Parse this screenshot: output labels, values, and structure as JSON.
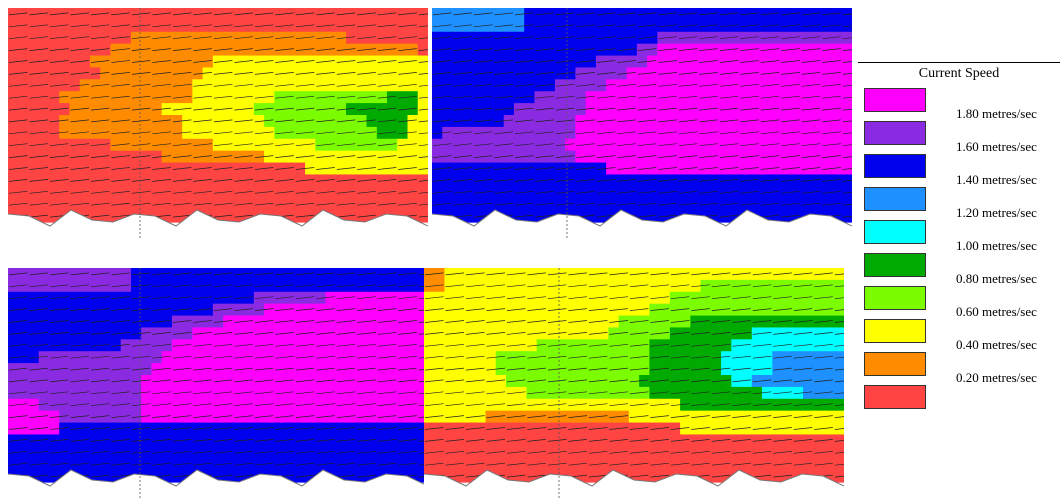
{
  "legend": {
    "title": "Current Speed",
    "items": [
      {
        "label": "1.80 metres/sec",
        "color": "#ff00ff"
      },
      {
        "label": "1.60 metres/sec",
        "color": "#8a2be2"
      },
      {
        "label": "1.40 metres/sec",
        "color": "#0000ee"
      },
      {
        "label": "1.20 metres/sec",
        "color": "#1e90ff"
      },
      {
        "label": "1.00 metres/sec",
        "color": "#00ffff"
      },
      {
        "label": "0.80 metres/sec",
        "color": "#00aa00"
      },
      {
        "label": "0.60 metres/sec",
        "color": "#7cfc00"
      },
      {
        "label": "0.40 metres/sec",
        "color": "#ffff00"
      },
      {
        "label": "0.20 metres/sec",
        "color": "#ff8c00"
      },
      {
        "label": "",
        "color": "#ff4444"
      }
    ]
  },
  "panels": [
    {
      "name": "panel-top-left",
      "rows": [
        "RRRRRRRRRRRRRRRRRRRRRRRRRRRRRRRRRRRRRRRRR",
        "RRRRRRRRRRRRRRRRRRRRRRRRRRRRRRRRRRRRRRRRR",
        "RRRRRRRRRRRROOOOOOOOOOOOOOOOOOOOORRRRRRRR",
        "RRRRRRRRRROOOOOOOOOOOOOOOOOOOOOOOOOOOOOOR",
        "RRRRRRRROOOOOOOOOOOOYYYYYYYYYYYYYYYYYYYYY",
        "RRRRRRRRROOOOOOOOOOYYYYYYYYYYYYYYYYYYYYYY",
        "RRRRRRROOOOOOOOOOOYYYYYYYYYYYYYYYYYYYYYYY",
        "RRRRROOOOOOOOOOOOOYYYYYYYYLLLLLLLLLLLGGGY",
        "RRRRRROOOOOOOOOYYYYYYYYYLLLLLLLLLGGGGGGGY",
        "RRRRROOOOOOOOOOOOYYYYYYYYLLLLLLLLLLGGGGYY",
        "RRRRROOOOOOOOOOOOYYYYYYYYYLLLLLLLLLLGGGYY",
        "RRRRRRRRRROOOOOOOOOOYYYYYYYYYYLLLLLLLLYYY",
        "RRRRRRRRRRRRRRROOOOOOOOOOYYYYYYYYYYYYYYYY",
        "RRRRRRRRRRRRRRRRRRRRRRRRRRRRRYYYYYYYYYYYY",
        "RRRRRRRRRRRRRRRRRRRRRRRRRRRRRRRRRRRRRRRRR",
        "RRRRRRRRRRRRRRRRRRRRRRRRRRRRRRRRRRRRRRRRR",
        "RRRRRRRRRRRRRRRRRRRRRRRRRRRRRRRRRRRRRRRRR",
        "RRRRRRRRRRRRRRRRRRRRRRRRRRRRRRRRRRRRRRRRR"
      ]
    },
    {
      "name": "panel-top-right",
      "rows": [
        "DDDDSSSSSBBBBBBBBBBBBBBBBBBBBBBBBBBBBBBBB",
        "DDDDDDSSSBBBBBBBBBBBBBBBBBBBBBBBBBBBBBBBB",
        "BBBBBBBBBBBBBBBBBBBBBBPPPPPPPPPPPPPPPPPPP",
        "BBBBBBBBBBBBBBBBBBBBPPMMMMMMMMMMMMMMMMMMM",
        "BBBBBBBBBBBBBBBBPPPPPMMMMMMMMMMMMMMMMMMMM",
        "BBBBBBBBBBBBBBPPPPPMMMMMMMMMMMMMMMMMMMMMM",
        "BBBBBBBBBBBBPPPPPMMMMMMMMMMMMMMMMMMMMMMMM",
        "BBBBBBBBBBPPPPPMMMMMMMMMMMMMMMMMMMMMMMMMM",
        "BBBBBBBBPPPPPPPMMMMMMMMMMMMMMMMMMMMMMMMMM",
        "BBBBBBBPPPPPPPMMMMMMMMMMMMMMMMMMMMMMMMMMM",
        "BPPPPPPPPPPPPPMMMMMMMMMMMMMMMMMMMMMMMMMMM",
        "PPPPPPPPPPPPPMMMMMMMMMMMMMMMMMMMMMMMMMMMM",
        "PPPPPPPPPPPPPPMMMMMMMMMMMMMMMMMMMMMMMMMMM",
        "BBBBBBBBBBBBBBBBBMMMMMMMMMMMMMMMMMMMMMMMM",
        "BBBBBBBBBBBBBBBBBBBBBBBBBBBBBBBBBBBBBBBBB",
        "BBBBBBBBBBBBBBBBBBBBBBBBBBBBBBBBBBBBBBBBB",
        "BBBBBBBBBBBBBBBBBBBBBBBBBBBBBBBBBBBBBBBBB",
        "BBBBBBBBBBBBBBBBBBBBBBBBBBBBBBBBBBBBBBBBB"
      ]
    },
    {
      "name": "panel-bottom-left",
      "rows": [
        "PPPPPPPPPPPPBBBBBBBBBBBBBBBBBBBBBBBBBBBBB",
        "PPPPPPPPPPPPBBBBBBBBBBBBBBBBBBBBBBBBBBBBB",
        "BBBBBBBBBBBBBBBBBBBBBBBBPPPPPPPMMMMMMMMMM",
        "BBBBBBBBBBBBBBBBBBBBPPPPPMMMMMMMMMMMMMMMM",
        "BBBBBBBBBBBBBBBBPPPPPMMMMMMMMMMMMMMMMMMMM",
        "BBBBBBBBBBBBBPPPPPMMMMMMMMMMMMMMMMMMMMMMM",
        "BBBBBBBBBBBPPPPPMMMMMMMMMMMMMMMMMMMMMMMMM",
        "BBBPPPPPPPPPPPPMMMMMMMMMMMMMMMMMMMMMMMMMM",
        "PPPPPPPPPPPPPPMMMMMMMMMMMMMMMMMMMMMMMMMMM",
        "PPPPPPPPPPPPPMMMMMMMMMMMMMMMMMMMMMMMMMMMM",
        "PPPPPPPPPPPPPMMMMMMMMMMMMMMMMMMMMMMMMMMMM",
        "MMMPPPPPPPPPPMMMMMMMMMMMMMMMMMMMMMMMMMMMM",
        "MMMMMPPPPPPPPMMMMMMMMMMMMMMMMMMMMMMMMMMMM",
        "MMMMMBBBBBBBBBBBBBBBBBBBBBBBBBBBBBBBBBBBB",
        "BBBBBBBBBBBBBBBBBBBBBBBBBBBBBBBBBBBBBBBBB",
        "BBBBBBBBBBBBBBBBBBBBBBBBBBBBBBBBBBBBBBBBB",
        "BBBBBBBBBBBBBBBBBBBBBBBBBBBBBBBBBBBBBBBBB",
        "BBBBBBBBBBBBBBBBBBBBBBBBBBBBBBBBBBBBBBBBB"
      ]
    },
    {
      "name": "panel-bottom-right",
      "rows": [
        "OOYYYYYYYYYYYYYYYYYYYYYYYYYYYYYYYYYYYYYYY",
        "OOYYYYYYYYYYYYYYYYYYYYYYYYYLLLLLLLLLLLLLL",
        "YYYYYYYYYYYYYYYYYYYYYYYYLLLLLLLLLLLLLLLLL",
        "YYYYYYYYYYYYYYYYYYYYYYLLLLLLLLLLLLLLLLLLL",
        "YYYYYYYYYYYYYYYYYYYLLLLLLLGGGGGGGGGGGGGGG",
        "YYYYYYYYYYYYYYYYYYLLLLLLGGGGGGGGCCCCCCCCC",
        "YYYYYYYYYYYLLLLLLLLLLLGGGGGGGGCCCCCCCCCCC",
        "YYYYYYYLLLLLLLLLLLLLLLGGGGGGGCCCCCSSSSSSS",
        "YYYYYYYLLLLLLLLLLLLLLLGGGGGGGCCCCCSSSSSSS",
        "YYYYYYYYLLLLLLLLLLLLLGGGGGGGGGCCSSSSSSSSS",
        "YYYYYYYYYYLLLLLLLLLLLLGGGGGGGGGGGCCCCSSSS",
        "YYYYYYYYYYYYYYYYYYYYYYYYYGGGGGGGGGGGGGGGG",
        "YYYYYYOOOOOOOOOOOOOOYYYYYYYYYYYYYYYYYYYYY",
        "RRRRRRRRRRRRRRRRRRRRRRRRRYYYYYYYYYYYYYYYY",
        "RRRRRRRRRRRRRRRRRRRRRRRRRRRRRRRRRRRRRRRRR",
        "RRRRRRRRRRRRRRRRRRRRRRRRRRRRRRRRRRRRRRRRR",
        "RRRRRRRRRRRRRRRRRRRRRRRRRRRRRRRRRRRRRRRRR",
        "RRRRRRRRRRRRRRRRRRRRRRRRRRRRRRRRRRRRRRRRR"
      ]
    }
  ],
  "palette": {
    "M": "#ff00ff",
    "P": "#8a2be2",
    "B": "#0000ee",
    "D": "#1e90ff",
    "S": "#1e90ff",
    "C": "#00ffff",
    "G": "#00aa00",
    "L": "#7cfc00",
    "Y": "#ffff00",
    "O": "#ff8c00",
    "R": "#ff4444"
  }
}
